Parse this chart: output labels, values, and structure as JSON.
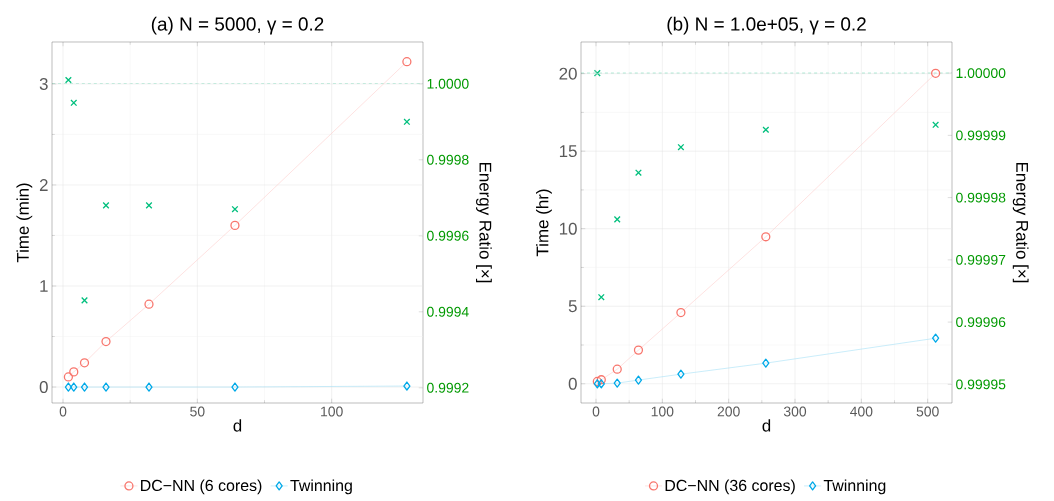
{
  "chart_data": [
    {
      "type": "line",
      "title": "(a) N = 5000, γ = 0.2",
      "xlabel": "d",
      "ylabel": "Time (min)",
      "y2label": "Energy Ratio [×]",
      "x": [
        2,
        4,
        8,
        16,
        32,
        64,
        128
      ],
      "series": [
        {
          "name": "DC−NN (6 cores)",
          "color": "#f8766d",
          "marker": "circle",
          "values": [
            0.1,
            0.15,
            0.24,
            0.45,
            0.82,
            1.6,
            3.22
          ]
        },
        {
          "name": "Twinning",
          "color": "#00a9e8",
          "marker": "diamond",
          "values": [
            0,
            0,
            0,
            0,
            0,
            0,
            0.01
          ]
        },
        {
          "type": "scatter",
          "axis": "y2",
          "color": "#00bf7d",
          "marker": "cross",
          "values": [
            1.00001,
            0.99995,
            0.99943,
            0.99968,
            0.99968,
            0.99967,
            0.9999
          ]
        }
      ],
      "xlim": [
        -4.1,
        134
      ],
      "xticks": [
        0,
        50,
        100
      ],
      "ylim": [
        -0.158,
        3.415
      ],
      "yticks": [
        0,
        1,
        2,
        3
      ],
      "y2lim": [
        0.99916,
        1.00011
      ],
      "y2ticks": [
        {
          "value": 0.9992,
          "label": "0.9992"
        },
        {
          "value": 0.9994,
          "label": "0.9994"
        },
        {
          "value": 0.9996,
          "label": "0.9996"
        },
        {
          "value": 0.9998,
          "label": "0.9998"
        },
        {
          "value": 1.0,
          "label": "1.0000"
        }
      ],
      "ref_lines": [
        {
          "axis": "y2",
          "value": 1.0,
          "color": "#00bf7d",
          "line_style": "dashed"
        }
      ],
      "grid": true,
      "legend": "bottom"
    },
    {
      "type": "line",
      "title": "(b) N = 1.0e+05, γ = 0.2",
      "xlabel": "d",
      "ylabel": "Time (hr)",
      "y2label": "Energy Ratio [×]",
      "x": [
        2,
        8,
        32,
        64,
        128,
        256,
        512
      ],
      "series": [
        {
          "name": "DC−NN (36 cores)",
          "color": "#f8766d",
          "marker": "circle",
          "values": [
            0.15,
            0.26,
            0.94,
            2.17,
            4.59,
            9.48,
            20.02
          ]
        },
        {
          "name": "Twinning",
          "color": "#00a9e8",
          "marker": "diamond",
          "values": [
            0,
            0,
            0.04,
            0.24,
            0.62,
            1.33,
            2.94
          ]
        },
        {
          "type": "scatter",
          "axis": "y2",
          "color": "#00bf7d",
          "marker": "cross",
          "values": [
            1.0,
            0.999964,
            0.9999765,
            0.999984,
            0.9999881,
            0.9999909,
            0.9999917
          ]
        }
      ],
      "xlim": [
        -22.6,
        536.7
      ],
      "xticks": [
        0,
        100,
        200,
        300,
        400,
        500
      ],
      "ylim": [
        -1.24,
        22.04
      ],
      "yticks": [
        0,
        5,
        10,
        15,
        20
      ],
      "y2lim": [
        0.999947,
        1.000005
      ],
      "y2ticks": [
        {
          "value": 0.99995,
          "label": "0.99995"
        },
        {
          "value": 0.99996,
          "label": "0.99996"
        },
        {
          "value": 0.99997,
          "label": "0.99997"
        },
        {
          "value": 0.99998,
          "label": "0.99998"
        },
        {
          "value": 0.99999,
          "label": "0.99999"
        },
        {
          "value": 1.0,
          "label": "1.00000"
        }
      ],
      "ref_lines": [
        {
          "axis": "y2",
          "value": 1.0,
          "color": "#00bf7d",
          "line_style": "dashed"
        }
      ],
      "grid": true,
      "legend": "bottom"
    }
  ]
}
